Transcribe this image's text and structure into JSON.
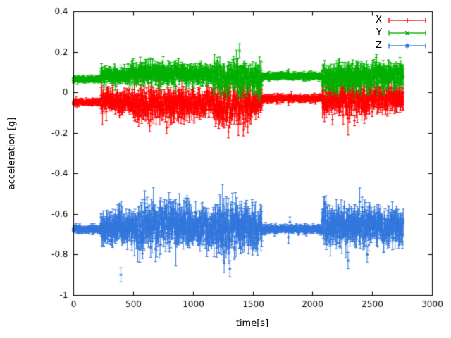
{
  "chart_data": {
    "type": "scatter",
    "style": "points-with-yerrorbars",
    "title": "",
    "xlabel": "time[s]",
    "ylabel": "acceleration [g]",
    "xlim": [
      0,
      3000
    ],
    "ylim": [
      -1,
      0.4
    ],
    "xticks": [
      0,
      500,
      1000,
      1500,
      2000,
      2500,
      3000
    ],
    "yticks": [
      0.4,
      0.2,
      0,
      -0.2,
      -0.4,
      -0.6,
      -0.8,
      -1
    ],
    "grid": false,
    "legend_position": "top-right",
    "background": "#ffffff",
    "axis_color": "#000000",
    "seed": 7,
    "series": [
      {
        "name": "X",
        "color": "#ff0000",
        "marker": "plus",
        "t_start": 0,
        "t_end": 2760,
        "dt": 2,
        "segments": [
          {
            "t0": 0,
            "t1": 230,
            "mean": -0.05,
            "noise": 0.006,
            "err": 0.008
          },
          {
            "t0": 230,
            "t1": 470,
            "mean": -0.045,
            "noise": 0.022,
            "err": 0.028
          },
          {
            "t0": 470,
            "t1": 960,
            "mean": -0.055,
            "noise": 0.032,
            "err": 0.036
          },
          {
            "t0": 960,
            "t1": 1170,
            "mean": -0.05,
            "noise": 0.028,
            "err": 0.03
          },
          {
            "t0": 1170,
            "t1": 1500,
            "mean": -0.06,
            "noise": 0.04,
            "err": 0.04
          },
          {
            "t0": 1500,
            "t1": 1580,
            "mean": -0.04,
            "noise": 0.025,
            "err": 0.03
          },
          {
            "t0": 1580,
            "t1": 2080,
            "mean": -0.03,
            "noise": 0.006,
            "err": 0.009
          },
          {
            "t0": 2080,
            "t1": 2480,
            "mean": -0.04,
            "noise": 0.03,
            "err": 0.034
          },
          {
            "t0": 2480,
            "t1": 2760,
            "mean": -0.03,
            "noise": 0.025,
            "err": 0.03
          }
        ],
        "spikes": [
          {
            "t": 1232,
            "v": 0.105,
            "err": 0.02
          },
          {
            "t": 640,
            "v": -0.165,
            "err": 0.03
          },
          {
            "t": 782,
            "v": -0.175,
            "err": 0.03
          },
          {
            "t": 1298,
            "v": -0.195,
            "err": 0.03
          },
          {
            "t": 1422,
            "v": -0.185,
            "err": 0.03
          },
          {
            "t": 1460,
            "v": -0.17,
            "err": 0.03
          },
          {
            "t": 2168,
            "v": -0.135,
            "err": 0.025
          },
          {
            "t": 2352,
            "v": -0.14,
            "err": 0.025
          },
          {
            "t": 1800,
            "v": -0.05,
            "err": 0.015
          }
        ]
      },
      {
        "name": "Y",
        "color": "#00b000",
        "marker": "cross",
        "t_start": 0,
        "t_end": 2760,
        "dt": 2,
        "segments": [
          {
            "t0": 0,
            "t1": 230,
            "mean": 0.065,
            "noise": 0.005,
            "err": 0.008
          },
          {
            "t0": 230,
            "t1": 470,
            "mean": 0.085,
            "noise": 0.015,
            "err": 0.02
          },
          {
            "t0": 470,
            "t1": 960,
            "mean": 0.09,
            "noise": 0.022,
            "err": 0.026
          },
          {
            "t0": 960,
            "t1": 1170,
            "mean": 0.09,
            "noise": 0.018,
            "err": 0.022
          },
          {
            "t0": 1170,
            "t1": 1500,
            "mean": 0.08,
            "noise": 0.03,
            "err": 0.03
          },
          {
            "t0": 1500,
            "t1": 1580,
            "mean": 0.06,
            "noise": 0.03,
            "err": 0.032
          },
          {
            "t0": 1580,
            "t1": 2080,
            "mean": 0.08,
            "noise": 0.006,
            "err": 0.009
          },
          {
            "t0": 2080,
            "t1": 2480,
            "mean": 0.08,
            "noise": 0.028,
            "err": 0.03
          },
          {
            "t0": 2480,
            "t1": 2760,
            "mean": 0.085,
            "noise": 0.025,
            "err": 0.028
          }
        ],
        "spikes": [
          {
            "t": 1390,
            "v": 0.205,
            "err": 0.035
          },
          {
            "t": 1545,
            "v": 0.005,
            "err": 0.035
          },
          {
            "t": 1562,
            "v": -0.015,
            "err": 0.03
          },
          {
            "t": 352,
            "v": 0.03,
            "err": 0.02
          },
          {
            "t": 2200,
            "v": 0.01,
            "err": 0.03
          },
          {
            "t": 2352,
            "v": 0.0,
            "err": 0.03
          },
          {
            "t": 2598,
            "v": 0.015,
            "err": 0.03
          },
          {
            "t": 1800,
            "v": 0.1,
            "err": 0.015
          }
        ]
      },
      {
        "name": "Z",
        "color": "#3377dd",
        "marker": "star",
        "t_start": 0,
        "t_end": 2760,
        "dt": 2,
        "segments": [
          {
            "t0": 0,
            "t1": 230,
            "mean": -0.675,
            "noise": 0.007,
            "err": 0.01
          },
          {
            "t0": 230,
            "t1": 520,
            "mean": -0.67,
            "noise": 0.03,
            "err": 0.04
          },
          {
            "t0": 520,
            "t1": 980,
            "mean": -0.655,
            "noise": 0.045,
            "err": 0.05
          },
          {
            "t0": 980,
            "t1": 1180,
            "mean": -0.67,
            "noise": 0.035,
            "err": 0.045
          },
          {
            "t0": 1180,
            "t1": 1430,
            "mean": -0.67,
            "noise": 0.05,
            "err": 0.055
          },
          {
            "t0": 1430,
            "t1": 1580,
            "mean": -0.665,
            "noise": 0.04,
            "err": 0.05
          },
          {
            "t0": 1580,
            "t1": 2080,
            "mean": -0.675,
            "noise": 0.007,
            "err": 0.01
          },
          {
            "t0": 2080,
            "t1": 2480,
            "mean": -0.655,
            "noise": 0.04,
            "err": 0.047
          },
          {
            "t0": 2480,
            "t1": 2760,
            "mean": -0.665,
            "noise": 0.035,
            "err": 0.042
          }
        ],
        "spikes": [
          {
            "t": 398,
            "v": -0.9,
            "err": 0.035
          },
          {
            "t": 1248,
            "v": -0.6,
            "err": 0.145
          },
          {
            "t": 1262,
            "v": -0.84,
            "err": 0.05
          },
          {
            "t": 855,
            "v": -0.585,
            "err": 0.04
          },
          {
            "t": 1310,
            "v": -0.87,
            "err": 0.04
          },
          {
            "t": 2298,
            "v": -0.83,
            "err": 0.04
          },
          {
            "t": 2458,
            "v": -0.8,
            "err": 0.04
          },
          {
            "t": 1800,
            "v": -0.715,
            "err": 0.03
          },
          {
            "t": 1812,
            "v": -0.64,
            "err": 0.025
          }
        ]
      }
    ]
  }
}
